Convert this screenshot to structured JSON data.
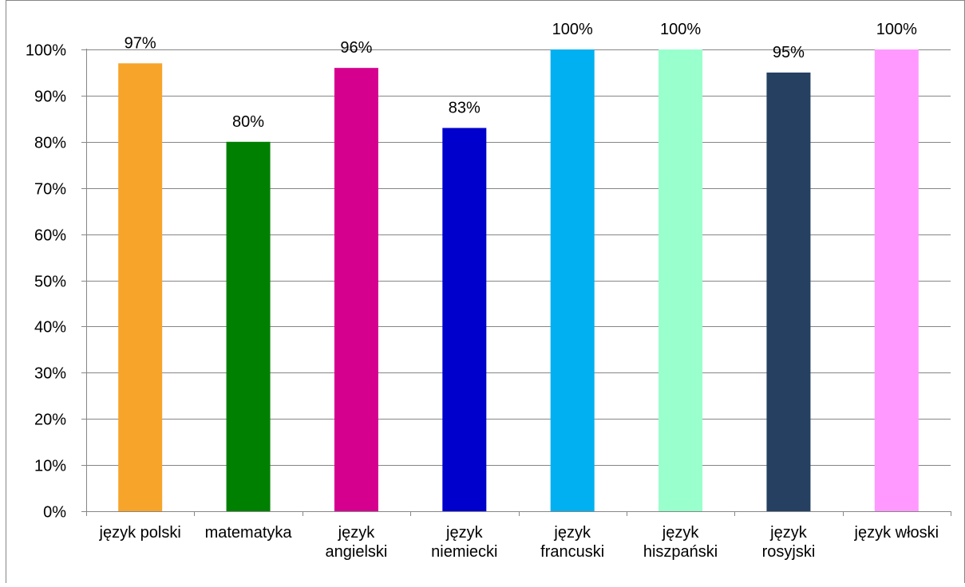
{
  "chart_data": {
    "type": "bar",
    "categories": [
      [
        "język polski"
      ],
      [
        "matematyka"
      ],
      [
        "język",
        "angielski"
      ],
      [
        "język",
        "niemiecki"
      ],
      [
        "język",
        "francuski"
      ],
      [
        "język",
        "hiszpański"
      ],
      [
        "język",
        "rosyjski"
      ],
      [
        "język włoski"
      ]
    ],
    "values": [
      97,
      80,
      96,
      83,
      100,
      100,
      95,
      100
    ],
    "value_labels": [
      "97%",
      "80%",
      "96%",
      "83%",
      "100%",
      "100%",
      "95%",
      "100%"
    ],
    "colors": [
      "#F7A42A",
      "#008000",
      "#D6008F",
      "#0000CC",
      "#00B0F0",
      "#99FFCC",
      "#254061",
      "#FF99FF"
    ],
    "ylim": [
      0,
      100
    ],
    "yticks": [
      "0%",
      "10%",
      "20%",
      "30%",
      "40%",
      "50%",
      "60%",
      "70%",
      "80%",
      "90%",
      "100%"
    ],
    "grid": true,
    "legend": "none",
    "title": "",
    "xlabel": "",
    "ylabel": ""
  }
}
